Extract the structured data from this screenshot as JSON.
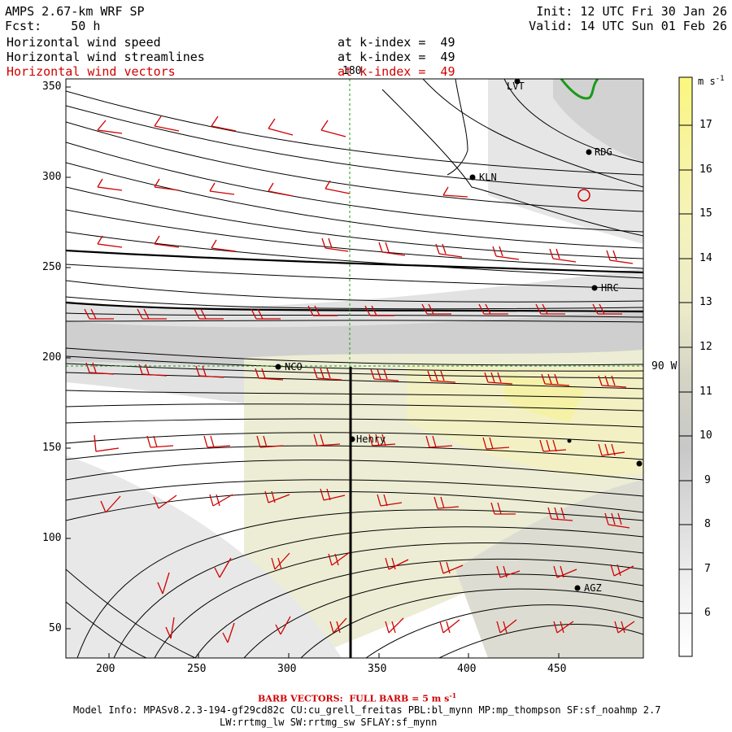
{
  "header": {
    "model": "AMPS 2.67-km WRF SP",
    "fcst": "Fcst:    50 h",
    "init": "Init: 12 UTC Fri 30 Jan 26",
    "valid": "Valid: 14 UTC Sun 01 Feb 26",
    "fields": [
      {
        "name": "Horizontal wind speed",
        "level": "at k-index =  49"
      },
      {
        "name": "Horizontal wind streamlines",
        "level": "at k-index =  49"
      },
      {
        "name": "Horizontal wind vectors",
        "level": "at k-index =  49"
      }
    ]
  },
  "map": {
    "x_ticks": [
      "200",
      "250",
      "300",
      "350",
      "400",
      "450"
    ],
    "y_ticks": [
      "350",
      "300",
      "250",
      "200",
      "150",
      "100",
      "50"
    ],
    "meridian_label": "180",
    "parallel_label": "90 W",
    "stations": [
      {
        "id": "LVT",
        "label": "LVT"
      },
      {
        "id": "RDG",
        "label": "RDG"
      },
      {
        "id": "KLN",
        "label": "KLN"
      },
      {
        "id": "HRC",
        "label": "HRC"
      },
      {
        "id": "NCO",
        "label": "NCO"
      },
      {
        "id": "Henry",
        "label": "Henry"
      },
      {
        "id": "AGZ",
        "label": "AGZ"
      }
    ],
    "colors": {
      "barb": "#d00000",
      "streamline": "#000000",
      "coast": "#1a9a1a",
      "guide": "#1a9a1a"
    }
  },
  "colorbar": {
    "unit": "m s",
    "unit_exp": "-1",
    "labels": [
      "17",
      "16",
      "15",
      "14",
      "13",
      "12",
      "11",
      "10",
      "9",
      "8",
      "7",
      "6"
    ]
  },
  "footer": {
    "barb_note": "BARB VECTORS:  FULL BARB = 5 m s",
    "barb_exp": "-1",
    "model_info_1": "Model Info: MPASv8.2.3-194-gf29cd82c CU:cu_grell_freitas PBL:bl_mynn MP:mp_thompson SF:sf_noahmp 2.7",
    "model_info_2": "LW:rrtmg_lw SW:rrtmg_sw SFLAY:sf_mynn"
  }
}
